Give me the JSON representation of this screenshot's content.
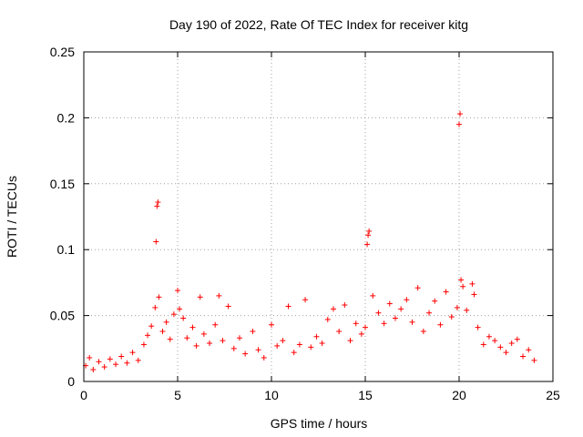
{
  "chart_data": {
    "type": "scatter",
    "title": "Day 190 of 2022, Rate Of TEC Index for receiver kitg",
    "xlabel": "GPS time / hours",
    "ylabel": "ROTI / TECUs",
    "xlim": [
      0,
      25
    ],
    "ylim": [
      0,
      0.25
    ],
    "xticks": [
      "0",
      "5",
      "10",
      "15",
      "20",
      "25"
    ],
    "yticks": [
      "0",
      "0.05",
      "0.1",
      "0.15",
      "0.2",
      "0.25"
    ],
    "grid": true,
    "marker": "+",
    "color": "#ff0000",
    "series": [
      {
        "values": [
          [
            0.1,
            0.012
          ],
          [
            0.3,
            0.018
          ],
          [
            0.5,
            0.009
          ],
          [
            0.8,
            0.015
          ],
          [
            1.1,
            0.011
          ],
          [
            1.4,
            0.017
          ],
          [
            1.7,
            0.013
          ],
          [
            2.0,
            0.019
          ],
          [
            2.3,
            0.014
          ],
          [
            2.6,
            0.022
          ],
          [
            2.9,
            0.016
          ],
          [
            3.2,
            0.028
          ],
          [
            3.4,
            0.035
          ],
          [
            3.6,
            0.042
          ],
          [
            3.8,
            0.056
          ],
          [
            3.85,
            0.106
          ],
          [
            3.9,
            0.133
          ],
          [
            3.95,
            0.136
          ],
          [
            4.0,
            0.064
          ],
          [
            4.2,
            0.038
          ],
          [
            4.4,
            0.045
          ],
          [
            4.6,
            0.032
          ],
          [
            4.8,
            0.051
          ],
          [
            5.0,
            0.069
          ],
          [
            5.1,
            0.055
          ],
          [
            5.3,
            0.048
          ],
          [
            5.5,
            0.033
          ],
          [
            5.8,
            0.041
          ],
          [
            6.0,
            0.027
          ],
          [
            6.2,
            0.064
          ],
          [
            6.4,
            0.036
          ],
          [
            6.7,
            0.029
          ],
          [
            7.0,
            0.043
          ],
          [
            7.2,
            0.065
          ],
          [
            7.4,
            0.031
          ],
          [
            7.7,
            0.057
          ],
          [
            8.0,
            0.025
          ],
          [
            8.3,
            0.033
          ],
          [
            8.6,
            0.021
          ],
          [
            9.0,
            0.038
          ],
          [
            9.3,
            0.024
          ],
          [
            9.6,
            0.018
          ],
          [
            10.0,
            0.043
          ],
          [
            10.3,
            0.027
          ],
          [
            10.6,
            0.031
          ],
          [
            10.9,
            0.057
          ],
          [
            11.2,
            0.022
          ],
          [
            11.5,
            0.028
          ],
          [
            11.8,
            0.062
          ],
          [
            12.1,
            0.026
          ],
          [
            12.4,
            0.034
          ],
          [
            12.7,
            0.029
          ],
          [
            13.0,
            0.047
          ],
          [
            13.3,
            0.055
          ],
          [
            13.6,
            0.038
          ],
          [
            13.9,
            0.058
          ],
          [
            14.2,
            0.031
          ],
          [
            14.5,
            0.044
          ],
          [
            14.8,
            0.036
          ],
          [
            15.0,
            0.041
          ],
          [
            15.1,
            0.104
          ],
          [
            15.15,
            0.111
          ],
          [
            15.2,
            0.114
          ],
          [
            15.4,
            0.065
          ],
          [
            15.7,
            0.052
          ],
          [
            16.0,
            0.044
          ],
          [
            16.3,
            0.059
          ],
          [
            16.6,
            0.048
          ],
          [
            16.9,
            0.055
          ],
          [
            17.2,
            0.062
          ],
          [
            17.5,
            0.045
          ],
          [
            17.8,
            0.071
          ],
          [
            18.1,
            0.038
          ],
          [
            18.4,
            0.052
          ],
          [
            18.7,
            0.061
          ],
          [
            19.0,
            0.043
          ],
          [
            19.3,
            0.068
          ],
          [
            19.6,
            0.049
          ],
          [
            19.9,
            0.056
          ],
          [
            20.0,
            0.195
          ],
          [
            20.05,
            0.203
          ],
          [
            20.1,
            0.077
          ],
          [
            20.2,
            0.072
          ],
          [
            20.4,
            0.054
          ],
          [
            20.7,
            0.074
          ],
          [
            20.8,
            0.066
          ],
          [
            21.0,
            0.041
          ],
          [
            21.3,
            0.028
          ],
          [
            21.6,
            0.034
          ],
          [
            21.9,
            0.031
          ],
          [
            22.2,
            0.026
          ],
          [
            22.5,
            0.022
          ],
          [
            22.8,
            0.029
          ],
          [
            23.1,
            0.032
          ],
          [
            23.4,
            0.019
          ],
          [
            23.7,
            0.024
          ],
          [
            24.0,
            0.016
          ]
        ]
      }
    ]
  }
}
